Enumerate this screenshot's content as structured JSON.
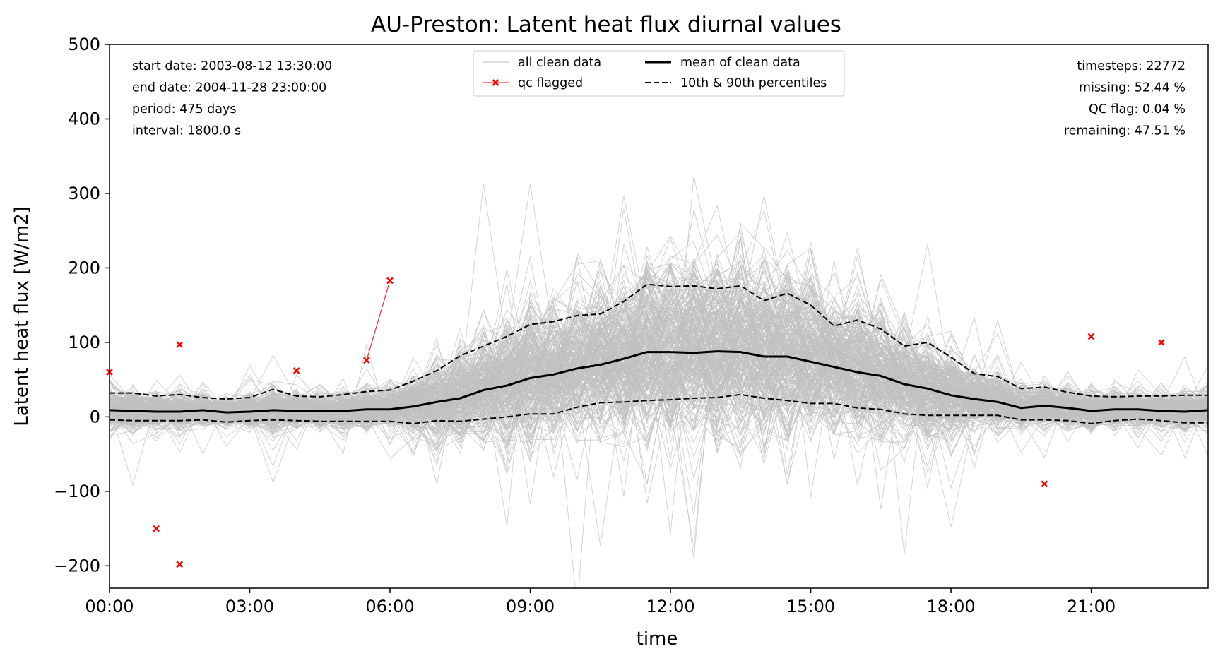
{
  "chart_data": {
    "type": "line",
    "title": "AU-Preston: Latent heat flux diurnal values",
    "xlabel": "time",
    "ylabel": "Latent heat flux [W/m2]",
    "xlim": [
      0,
      23.5
    ],
    "ylim": [
      -230,
      500
    ],
    "x_ticks": [
      0,
      3,
      6,
      9,
      12,
      15,
      18,
      21
    ],
    "x_tick_labels": [
      "00:00",
      "03:00",
      "06:00",
      "09:00",
      "12:00",
      "15:00",
      "18:00",
      "21:00"
    ],
    "y_ticks": [
      -200,
      -100,
      0,
      100,
      200,
      300,
      400,
      500
    ],
    "y_tick_labels": [
      "−200",
      "−100",
      "0",
      "100",
      "200",
      "300",
      "400",
      "500"
    ],
    "grid": false,
    "info_left": [
      "start date: 2003-08-12 13:30:00",
      "end date: 2004-11-28 23:00:00",
      "period: 475 days",
      "interval: 1800.0 s"
    ],
    "info_right": [
      "timesteps: 22772",
      "missing: 52.44 %",
      "QC flag: 0.04 %",
      "remaining: 47.51 %"
    ],
    "legend": {
      "placement": "top-center",
      "entries": [
        {
          "label": "all clean data",
          "style": "thin-gray",
          "color": "#c0c0c0"
        },
        {
          "label": "qc flagged",
          "style": "red-x",
          "color": "#ff0000"
        },
        {
          "label": "mean of clean data",
          "style": "solid-black",
          "color": "#000000"
        },
        {
          "label": "10th & 90th percentiles",
          "style": "dashed-black",
          "color": "#000000"
        }
      ]
    },
    "x": [
      0,
      0.5,
      1,
      1.5,
      2,
      2.5,
      3,
      3.5,
      4,
      4.5,
      5,
      5.5,
      6,
      6.5,
      7,
      7.5,
      8,
      8.5,
      9,
      9.5,
      10,
      10.5,
      11,
      11.5,
      12,
      12.5,
      13,
      13.5,
      14,
      14.5,
      15,
      15.5,
      16,
      16.5,
      17,
      17.5,
      18,
      18.5,
      19,
      19.5,
      20,
      20.5,
      21,
      21.5,
      22,
      22.5,
      23,
      23.5
    ],
    "series": [
      {
        "name": "mean of clean data",
        "style": "solid",
        "color": "#000000",
        "values": [
          9,
          8,
          7,
          7,
          9,
          6,
          7,
          9,
          8,
          8,
          8,
          10,
          10,
          14,
          20,
          25,
          36,
          42,
          52,
          57,
          65,
          70,
          78,
          87,
          87,
          86,
          88,
          87,
          81,
          81,
          74,
          67,
          60,
          55,
          44,
          38,
          29,
          24,
          20,
          12,
          15,
          12,
          8,
          10,
          10,
          8,
          7,
          9
        ]
      },
      {
        "name": "90th percentile",
        "style": "dashed",
        "color": "#000000",
        "values": [
          32,
          32,
          28,
          30,
          26,
          24,
          26,
          37,
          28,
          27,
          30,
          34,
          36,
          48,
          62,
          82,
          95,
          108,
          124,
          128,
          136,
          138,
          155,
          178,
          175,
          176,
          172,
          176,
          156,
          166,
          150,
          122,
          130,
          118,
          95,
          100,
          80,
          58,
          54,
          38,
          40,
          33,
          28,
          27,
          28,
          28,
          29,
          29
        ]
      },
      {
        "name": "10th percentile",
        "style": "dashed",
        "color": "#000000",
        "values": [
          -4,
          -5,
          -5,
          -5,
          -4,
          -7,
          -5,
          -4,
          -5,
          -6,
          -6,
          -6,
          -6,
          -9,
          -5,
          -6,
          -3,
          0,
          4,
          4,
          13,
          19,
          20,
          22,
          23,
          25,
          26,
          30,
          25,
          22,
          18,
          18,
          12,
          10,
          4,
          2,
          2,
          2,
          2,
          -4,
          -4,
          -5,
          -9,
          -5,
          -3,
          -5,
          -8,
          -8
        ]
      }
    ],
    "qc_flagged": [
      {
        "x": 0,
        "y": 60
      },
      {
        "x": 1,
        "y": -150
      },
      {
        "x": 1.5,
        "y": 97
      },
      {
        "x": 1.5,
        "y": -198
      },
      {
        "x": 4,
        "y": 62
      },
      {
        "x": 5.5,
        "y": 76
      },
      {
        "x": 6,
        "y": 183
      },
      {
        "x": 20,
        "y": -90
      },
      {
        "x": 21,
        "y": 108
      },
      {
        "x": 22.5,
        "y": 100
      }
    ],
    "clean_data_trace_count": 260
  }
}
